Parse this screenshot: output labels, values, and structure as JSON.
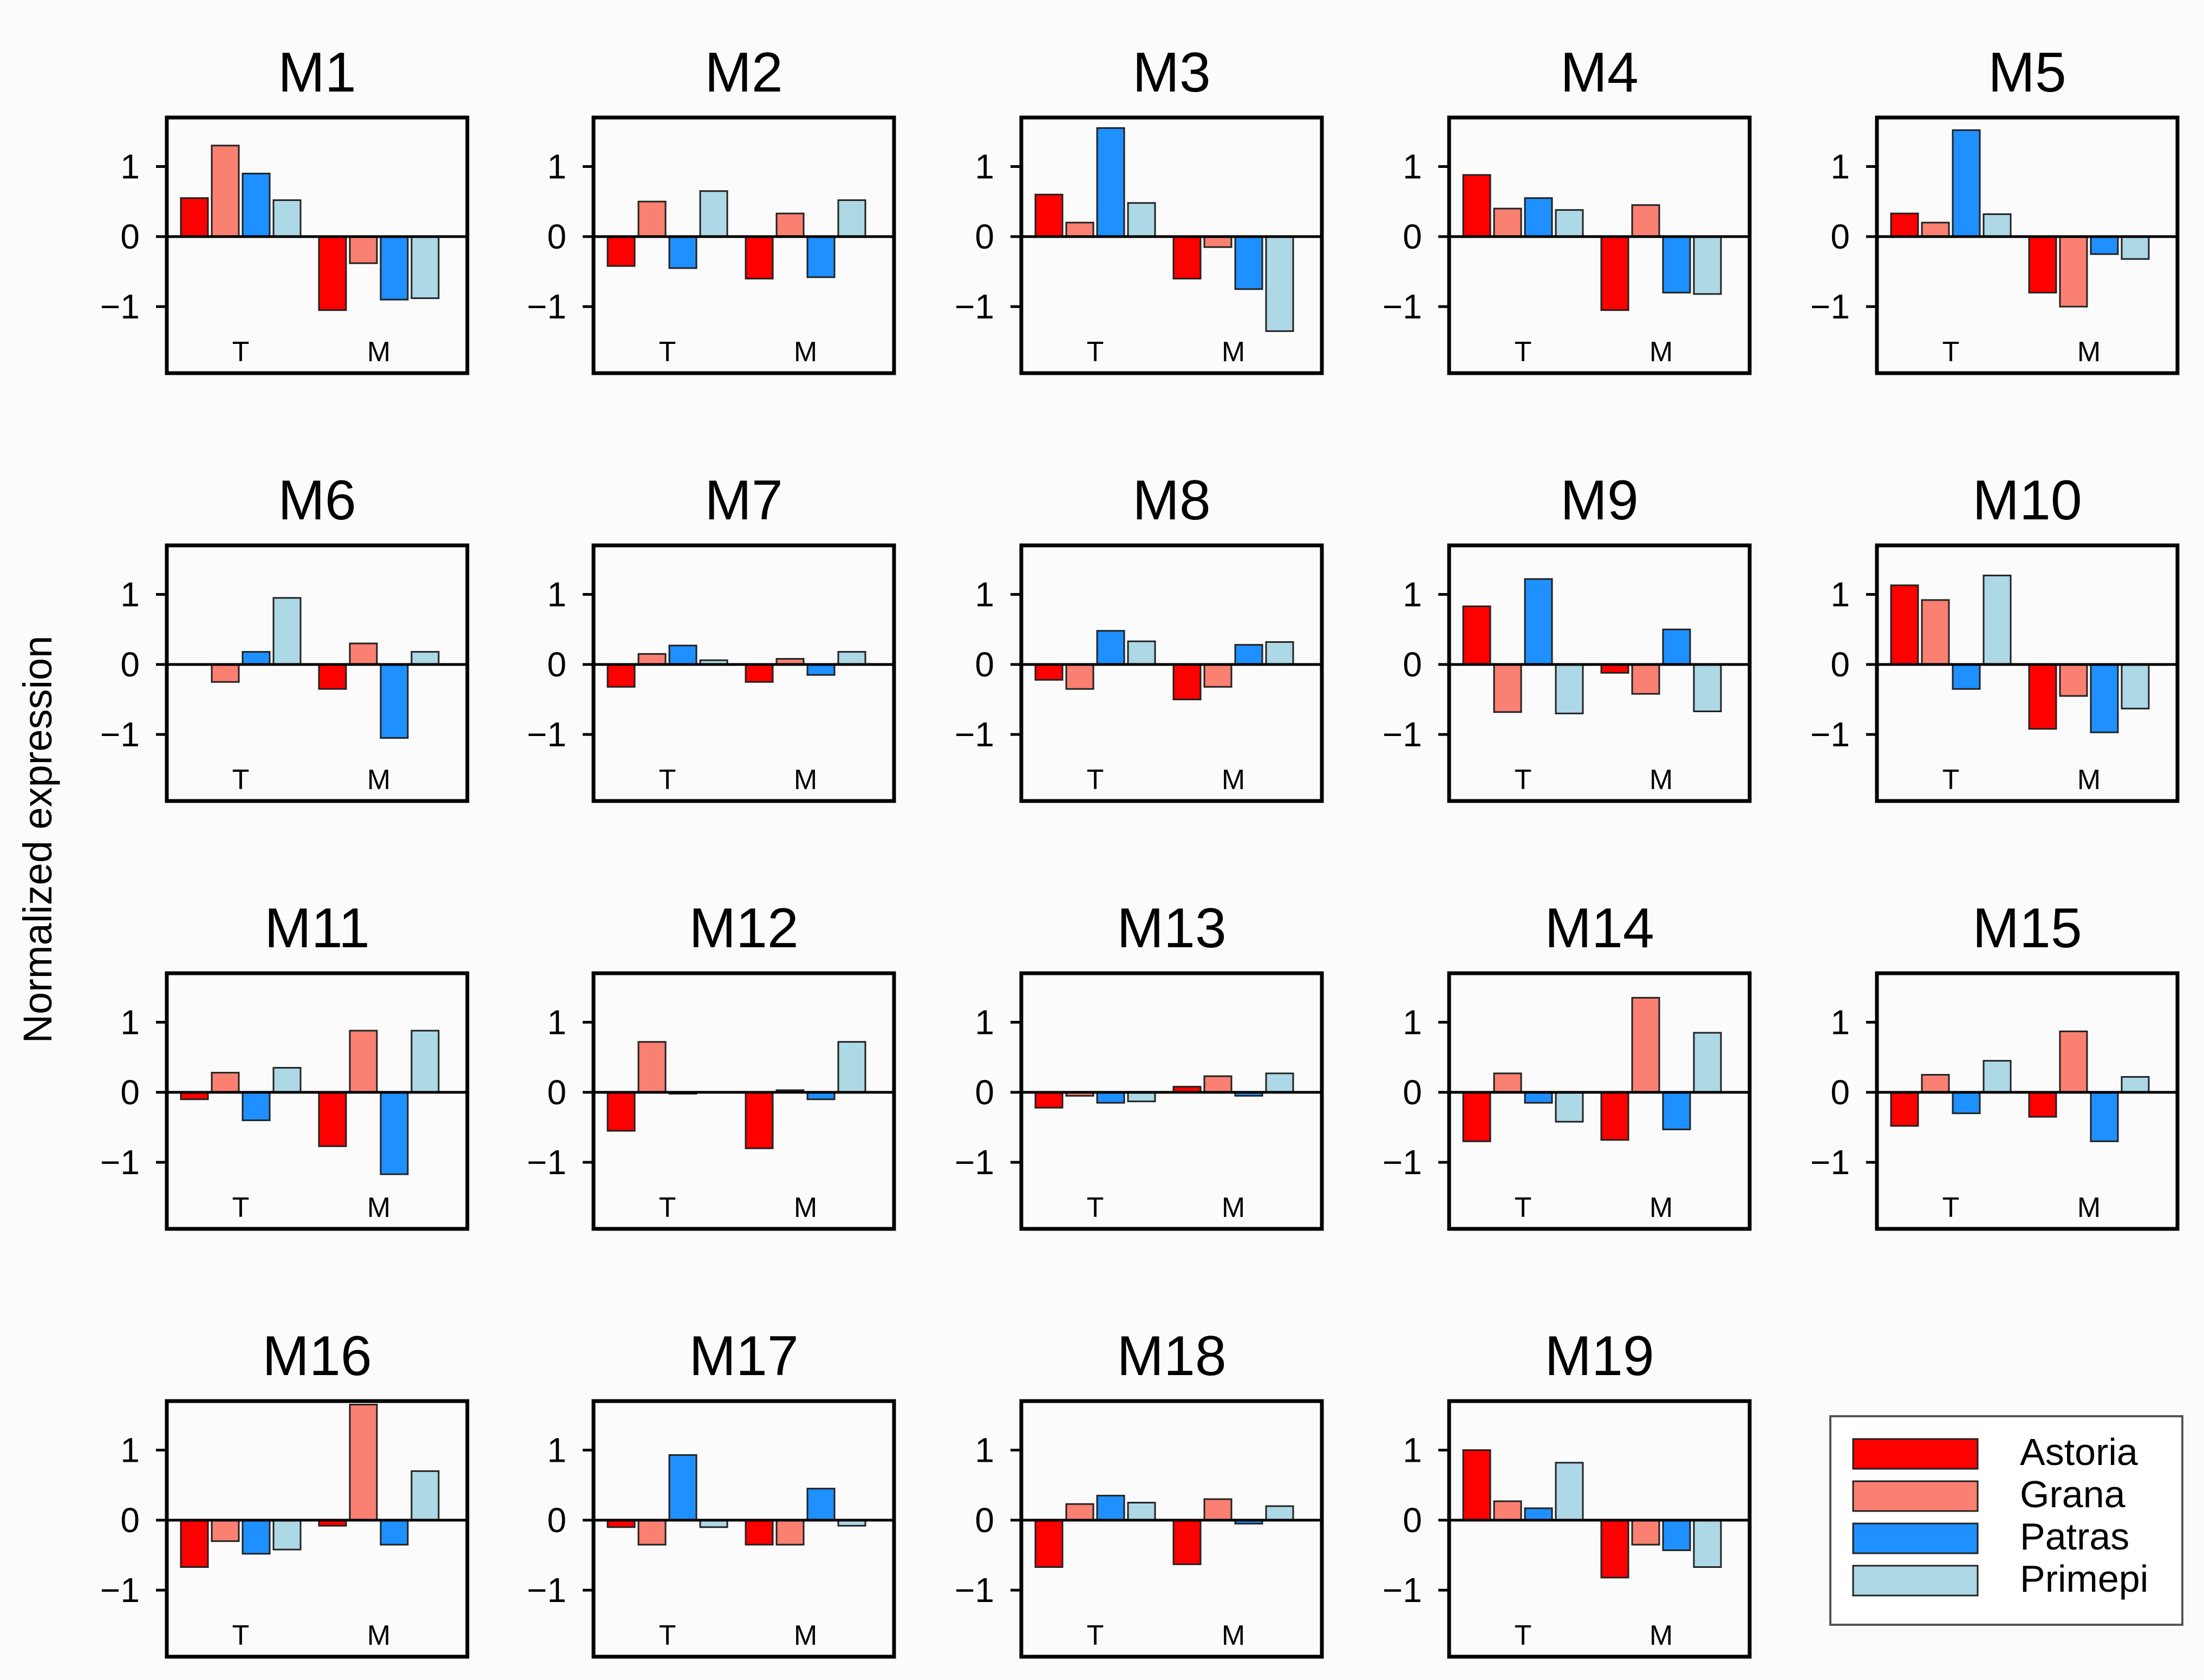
{
  "figure": {
    "ylabel": "Normalized expression"
  },
  "colors": {
    "Astoria": "#ff0000",
    "Grana": "#fa8072",
    "Patras": "#1e90ff",
    "Primepi": "#add8e6"
  },
  "legend": {
    "entries": [
      "Astoria",
      "Grana",
      "Patras",
      "Primepi"
    ]
  },
  "chart_data": [
    {
      "type": "bar",
      "title": "M1",
      "groups": [
        "T",
        "M"
      ],
      "series": [
        {
          "name": "Astoria",
          "values": [
            0.55,
            -1.05
          ]
        },
        {
          "name": "Grana",
          "values": [
            1.3,
            -0.38
          ]
        },
        {
          "name": "Patras",
          "values": [
            0.9,
            -0.9
          ]
        },
        {
          "name": "Primepi",
          "values": [
            0.52,
            -0.88
          ]
        }
      ],
      "ylim": [
        -1.95,
        1.7
      ],
      "yticks": [
        "1",
        "0",
        "−1"
      ],
      "ytick_values": [
        1,
        0,
        -1
      ]
    },
    {
      "type": "bar",
      "title": "M2",
      "groups": [
        "T",
        "M"
      ],
      "series": [
        {
          "name": "Astoria",
          "values": [
            -0.42,
            -0.6
          ]
        },
        {
          "name": "Grana",
          "values": [
            0.5,
            0.33
          ]
        },
        {
          "name": "Patras",
          "values": [
            -0.45,
            -0.58
          ]
        },
        {
          "name": "Primepi",
          "values": [
            0.65,
            0.52
          ]
        }
      ],
      "ylim": [
        -1.95,
        1.7
      ],
      "yticks": [
        "1",
        "0",
        "−1"
      ],
      "ytick_values": [
        1,
        0,
        -1
      ]
    },
    {
      "type": "bar",
      "title": "M3",
      "groups": [
        "T",
        "M"
      ],
      "series": [
        {
          "name": "Astoria",
          "values": [
            0.6,
            -0.6
          ]
        },
        {
          "name": "Grana",
          "values": [
            0.2,
            -0.15
          ]
        },
        {
          "name": "Patras",
          "values": [
            1.55,
            -0.75
          ]
        },
        {
          "name": "Primepi",
          "values": [
            0.48,
            -1.35
          ]
        }
      ],
      "ylim": [
        -1.95,
        1.7
      ],
      "yticks": [
        "1",
        "0",
        "−1"
      ],
      "ytick_values": [
        1,
        0,
        -1
      ]
    },
    {
      "type": "bar",
      "title": "M4",
      "groups": [
        "T",
        "M"
      ],
      "series": [
        {
          "name": "Astoria",
          "values": [
            0.88,
            -1.05
          ]
        },
        {
          "name": "Grana",
          "values": [
            0.4,
            0.45
          ]
        },
        {
          "name": "Patras",
          "values": [
            0.55,
            -0.8
          ]
        },
        {
          "name": "Primepi",
          "values": [
            0.38,
            -0.82
          ]
        }
      ],
      "ylim": [
        -1.95,
        1.7
      ],
      "yticks": [
        "1",
        "0",
        "−1"
      ],
      "ytick_values": [
        1,
        0,
        -1
      ]
    },
    {
      "type": "bar",
      "title": "M5",
      "groups": [
        "T",
        "M"
      ],
      "series": [
        {
          "name": "Astoria",
          "values": [
            0.33,
            -0.8
          ]
        },
        {
          "name": "Grana",
          "values": [
            0.2,
            -1.0
          ]
        },
        {
          "name": "Patras",
          "values": [
            1.52,
            -0.25
          ]
        },
        {
          "name": "Primepi",
          "values": [
            0.32,
            -0.32
          ]
        }
      ],
      "ylim": [
        -1.95,
        1.7
      ],
      "yticks": [
        "1",
        "0",
        "−1"
      ],
      "ytick_values": [
        1,
        0,
        -1
      ]
    },
    {
      "type": "bar",
      "title": "M6",
      "groups": [
        "T",
        "M"
      ],
      "series": [
        {
          "name": "Astoria",
          "values": [
            0,
            -0.35
          ]
        },
        {
          "name": "Grana",
          "values": [
            -0.25,
            0.3
          ]
        },
        {
          "name": "Patras",
          "values": [
            0.18,
            -1.05
          ]
        },
        {
          "name": "Primepi",
          "values": [
            0.95,
            0.18
          ]
        }
      ],
      "ylim": [
        -1.95,
        1.7
      ],
      "yticks": [
        "1",
        "0",
        "−1"
      ],
      "ytick_values": [
        1,
        0,
        -1
      ]
    },
    {
      "type": "bar",
      "title": "M7",
      "groups": [
        "T",
        "M"
      ],
      "series": [
        {
          "name": "Astoria",
          "values": [
            -0.32,
            -0.25
          ]
        },
        {
          "name": "Grana",
          "values": [
            0.15,
            0.08
          ]
        },
        {
          "name": "Patras",
          "values": [
            0.27,
            -0.15
          ]
        },
        {
          "name": "Primepi",
          "values": [
            0.06,
            0.18
          ]
        }
      ],
      "ylim": [
        -1.95,
        1.7
      ],
      "yticks": [
        "1",
        "0",
        "−1"
      ],
      "ytick_values": [
        1,
        0,
        -1
      ]
    },
    {
      "type": "bar",
      "title": "M8",
      "groups": [
        "T",
        "M"
      ],
      "series": [
        {
          "name": "Astoria",
          "values": [
            -0.22,
            -0.5
          ]
        },
        {
          "name": "Grana",
          "values": [
            -0.35,
            -0.32
          ]
        },
        {
          "name": "Patras",
          "values": [
            0.48,
            0.28
          ]
        },
        {
          "name": "Primepi",
          "values": [
            0.33,
            0.32
          ]
        }
      ],
      "ylim": [
        -1.95,
        1.7
      ],
      "yticks": [
        "1",
        "0",
        "−1"
      ],
      "ytick_values": [
        1,
        0,
        -1
      ]
    },
    {
      "type": "bar",
      "title": "M9",
      "groups": [
        "T",
        "M"
      ],
      "series": [
        {
          "name": "Astoria",
          "values": [
            0.83,
            -0.12
          ]
        },
        {
          "name": "Grana",
          "values": [
            -0.68,
            -0.42
          ]
        },
        {
          "name": "Patras",
          "values": [
            1.22,
            0.5
          ]
        },
        {
          "name": "Primepi",
          "values": [
            -0.7,
            -0.67
          ]
        }
      ],
      "ylim": [
        -1.95,
        1.7
      ],
      "yticks": [
        "1",
        "0",
        "−1"
      ],
      "ytick_values": [
        1,
        0,
        -1
      ]
    },
    {
      "type": "bar",
      "title": "M10",
      "groups": [
        "T",
        "M"
      ],
      "series": [
        {
          "name": "Astoria",
          "values": [
            1.13,
            -0.92
          ]
        },
        {
          "name": "Grana",
          "values": [
            0.92,
            -0.45
          ]
        },
        {
          "name": "Patras",
          "values": [
            -0.35,
            -0.97
          ]
        },
        {
          "name": "Primepi",
          "values": [
            1.27,
            -0.63
          ]
        }
      ],
      "ylim": [
        -1.95,
        1.7
      ],
      "yticks": [
        "1",
        "0",
        "−1"
      ],
      "ytick_values": [
        1,
        0,
        -1
      ]
    },
    {
      "type": "bar",
      "title": "M11",
      "groups": [
        "T",
        "M"
      ],
      "series": [
        {
          "name": "Astoria",
          "values": [
            -0.1,
            -0.77
          ]
        },
        {
          "name": "Grana",
          "values": [
            0.28,
            0.88
          ]
        },
        {
          "name": "Patras",
          "values": [
            -0.4,
            -1.17
          ]
        },
        {
          "name": "Primepi",
          "values": [
            0.35,
            0.88
          ]
        }
      ],
      "ylim": [
        -1.95,
        1.7
      ],
      "yticks": [
        "1",
        "0",
        "−1"
      ],
      "ytick_values": [
        1,
        0,
        -1
      ]
    },
    {
      "type": "bar",
      "title": "M12",
      "groups": [
        "T",
        "M"
      ],
      "series": [
        {
          "name": "Astoria",
          "values": [
            -0.55,
            -0.8
          ]
        },
        {
          "name": "Grana",
          "values": [
            0.72,
            0.03
          ]
        },
        {
          "name": "Patras",
          "values": [
            -0.02,
            -0.1
          ]
        },
        {
          "name": "Primepi",
          "values": [
            0,
            0.72
          ]
        }
      ],
      "ylim": [
        -1.95,
        1.7
      ],
      "yticks": [
        "1",
        "0",
        "−1"
      ],
      "ytick_values": [
        1,
        0,
        -1
      ]
    },
    {
      "type": "bar",
      "title": "M13",
      "groups": [
        "T",
        "M"
      ],
      "series": [
        {
          "name": "Astoria",
          "values": [
            -0.22,
            0.08
          ]
        },
        {
          "name": "Grana",
          "values": [
            -0.05,
            0.23
          ]
        },
        {
          "name": "Patras",
          "values": [
            -0.15,
            -0.05
          ]
        },
        {
          "name": "Primepi",
          "values": [
            -0.13,
            0.27
          ]
        }
      ],
      "ylim": [
        -1.95,
        1.7
      ],
      "yticks": [
        "1",
        "0",
        "−1"
      ],
      "ytick_values": [
        1,
        0,
        -1
      ]
    },
    {
      "type": "bar",
      "title": "M14",
      "groups": [
        "T",
        "M"
      ],
      "series": [
        {
          "name": "Astoria",
          "values": [
            -0.7,
            -0.68
          ]
        },
        {
          "name": "Grana",
          "values": [
            0.27,
            1.35
          ]
        },
        {
          "name": "Patras",
          "values": [
            -0.15,
            -0.53
          ]
        },
        {
          "name": "Primepi",
          "values": [
            -0.42,
            0.85
          ]
        }
      ],
      "ylim": [
        -1.95,
        1.7
      ],
      "yticks": [
        "1",
        "0",
        "−1"
      ],
      "ytick_values": [
        1,
        0,
        -1
      ]
    },
    {
      "type": "bar",
      "title": "M15",
      "groups": [
        "T",
        "M"
      ],
      "series": [
        {
          "name": "Astoria",
          "values": [
            -0.48,
            -0.35
          ]
        },
        {
          "name": "Grana",
          "values": [
            0.25,
            0.87
          ]
        },
        {
          "name": "Patras",
          "values": [
            -0.3,
            -0.7
          ]
        },
        {
          "name": "Primepi",
          "values": [
            0.45,
            0.22
          ]
        }
      ],
      "ylim": [
        -1.95,
        1.7
      ],
      "yticks": [
        "1",
        "0",
        "−1"
      ],
      "ytick_values": [
        1,
        0,
        -1
      ]
    },
    {
      "type": "bar",
      "title": "M16",
      "groups": [
        "T",
        "M"
      ],
      "series": [
        {
          "name": "Astoria",
          "values": [
            -0.67,
            -0.08
          ]
        },
        {
          "name": "Grana",
          "values": [
            -0.3,
            1.65
          ]
        },
        {
          "name": "Patras",
          "values": [
            -0.48,
            -0.35
          ]
        },
        {
          "name": "Primepi",
          "values": [
            -0.42,
            0.7
          ]
        }
      ],
      "ylim": [
        -1.95,
        1.7
      ],
      "yticks": [
        "1",
        "0",
        "−1"
      ],
      "ytick_values": [
        1,
        0,
        -1
      ]
    },
    {
      "type": "bar",
      "title": "M17",
      "groups": [
        "T",
        "M"
      ],
      "series": [
        {
          "name": "Astoria",
          "values": [
            -0.1,
            -0.35
          ]
        },
        {
          "name": "Grana",
          "values": [
            -0.35,
            -0.35
          ]
        },
        {
          "name": "Patras",
          "values": [
            0.93,
            0.45
          ]
        },
        {
          "name": "Primepi",
          "values": [
            -0.1,
            -0.08
          ]
        }
      ],
      "ylim": [
        -1.95,
        1.7
      ],
      "yticks": [
        "1",
        "0",
        "−1"
      ],
      "ytick_values": [
        1,
        0,
        -1
      ]
    },
    {
      "type": "bar",
      "title": "M18",
      "groups": [
        "T",
        "M"
      ],
      "series": [
        {
          "name": "Astoria",
          "values": [
            -0.67,
            -0.63
          ]
        },
        {
          "name": "Grana",
          "values": [
            0.23,
            0.3
          ]
        },
        {
          "name": "Patras",
          "values": [
            0.35,
            -0.05
          ]
        },
        {
          "name": "Primepi",
          "values": [
            0.25,
            0.2
          ]
        }
      ],
      "ylim": [
        -1.95,
        1.7
      ],
      "yticks": [
        "1",
        "0",
        "−1"
      ],
      "ytick_values": [
        1,
        0,
        -1
      ]
    },
    {
      "type": "bar",
      "title": "M19",
      "groups": [
        "T",
        "M"
      ],
      "series": [
        {
          "name": "Astoria",
          "values": [
            1.0,
            -0.82
          ]
        },
        {
          "name": "Grana",
          "values": [
            0.27,
            -0.35
          ]
        },
        {
          "name": "Patras",
          "values": [
            0.17,
            -0.43
          ]
        },
        {
          "name": "Primepi",
          "values": [
            0.82,
            -0.67
          ]
        }
      ],
      "ylim": [
        -1.95,
        1.7
      ],
      "yticks": [
        "1",
        "0",
        "−1"
      ],
      "ytick_values": [
        1,
        0,
        -1
      ]
    }
  ]
}
